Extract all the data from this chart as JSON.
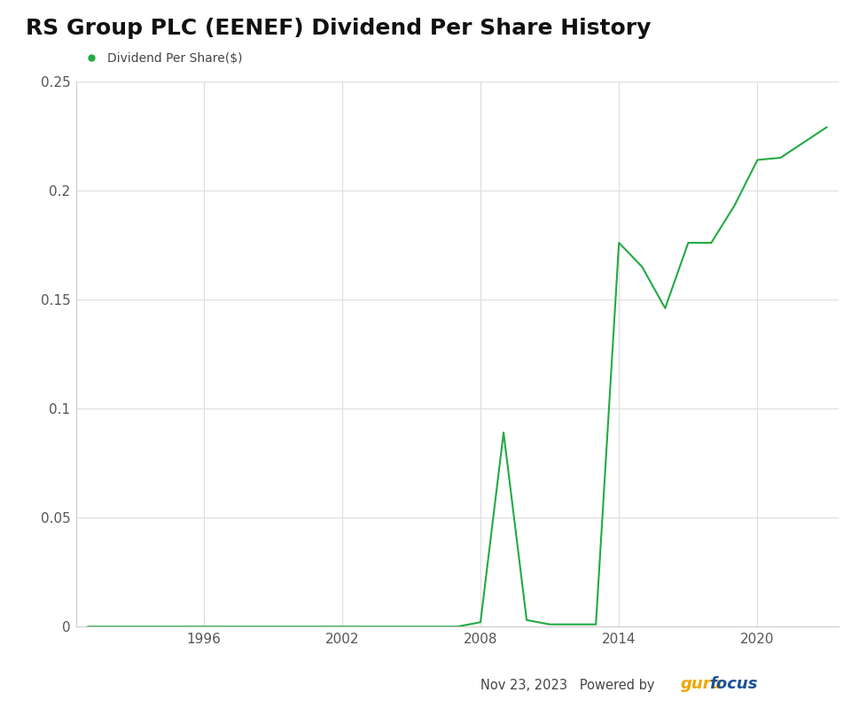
{
  "title": "RS Group PLC (EENEF) Dividend Per Share History",
  "legend_label": "Dividend Per Share($)",
  "line_color": "#22aa44",
  "background_color": "#ffffff",
  "plot_bg_color": "#ffffff",
  "grid_color": "#dddddd",
  "title_color": "#111111",
  "title_fontsize": 18,
  "legend_fontsize": 10,
  "tick_fontsize": 11,
  "ylim": [
    0,
    0.25
  ],
  "ytick_vals": [
    0,
    0.05,
    0.1,
    0.15,
    0.2,
    0.25
  ],
  "ytick_labels": [
    "0",
    "0.05",
    "0.1",
    "0.15",
    "0.2",
    "0.25"
  ],
  "xticks": [
    1996,
    2002,
    2008,
    2014,
    2020
  ],
  "footer_date": "Nov 23, 2023",
  "footer_powered_text": "Powered by ",
  "footer_guru": "guru",
  "footer_focus": "focus",
  "footer_guru_color": "#f0a500",
  "footer_focus_color": "#1a5299",
  "years": [
    1991,
    1992,
    1993,
    1994,
    1995,
    1996,
    1997,
    1998,
    1999,
    2000,
    2001,
    2002,
    2003,
    2004,
    2005,
    2006,
    2007,
    2008,
    2009,
    2010,
    2011,
    2012,
    2013,
    2014,
    2015,
    2016,
    2017,
    2018,
    2019,
    2020,
    2021,
    2022,
    2023
  ],
  "values": [
    0.0,
    0.0,
    0.0,
    0.0,
    0.0,
    0.0,
    0.0,
    0.0,
    0.0,
    0.0,
    0.0,
    0.0,
    0.0,
    0.0,
    0.0,
    0.0,
    0.0,
    0.002,
    0.089,
    0.003,
    0.001,
    0.001,
    0.001,
    0.176,
    0.165,
    0.146,
    0.176,
    0.176,
    0.193,
    0.214,
    0.215,
    0.222,
    0.229
  ]
}
